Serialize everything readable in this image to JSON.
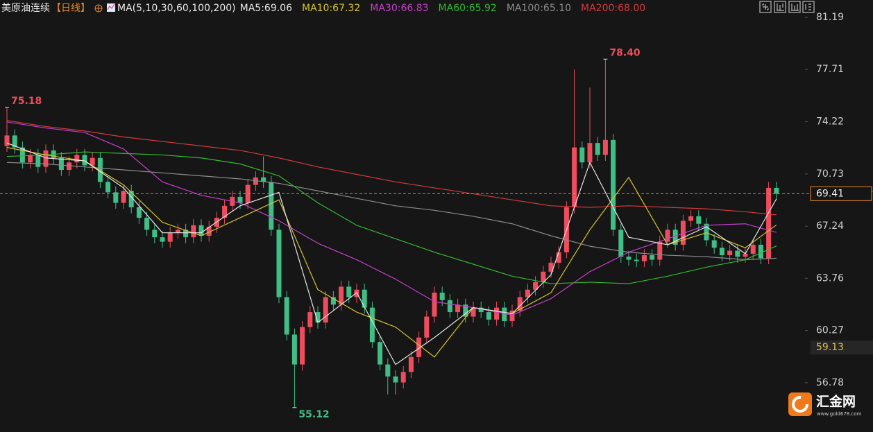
{
  "chart_data": {
    "type": "candlestick",
    "title": "美原油连续",
    "period": "【日线】",
    "ma_label": "MA(5,10,30,60,100,200)",
    "ylim": [
      53.49,
      82.35
    ],
    "yticks": [
      81.19,
      77.71,
      74.22,
      70.73,
      67.24,
      63.76,
      60.27,
      56.78
    ],
    "up_color": "#ef4d5d",
    "down_color": "#3fbf86",
    "last_price_color": "#e8892e",
    "price_marker": 59.13,
    "candles": {
      "open": [
        72.6,
        73.3,
        72.5,
        71.5,
        72.0,
        71.2,
        72.3,
        71.8,
        71.0,
        71.5,
        72.0,
        71.3,
        71.8,
        70.2,
        69.5,
        68.8,
        69.6,
        68.5,
        67.8,
        67.0,
        66.5,
        66.2,
        66.8,
        67.0,
        66.5,
        67.3,
        66.6,
        67.2,
        67.8,
        68.6,
        69.2,
        68.8,
        70.0,
        70.5,
        70.2,
        67.0,
        62.5,
        60.0,
        58.0,
        60.5,
        61.5,
        60.8,
        62.5,
        62.0,
        63.2,
        62.5,
        63.0,
        61.8,
        59.5,
        58.0,
        57.2,
        56.8,
        57.5,
        58.5,
        59.8,
        61.2,
        62.8,
        62.3,
        61.5,
        62.0,
        61.2,
        61.8,
        61.5,
        61.0,
        61.8,
        60.9,
        61.6,
        62.5,
        63.0,
        63.5,
        64.2,
        64.8,
        65.5,
        68.5,
        72.5,
        71.5,
        72.8,
        72.0,
        73.0,
        67.0,
        65.2,
        65.0,
        64.9,
        65.3,
        65.0,
        66.2,
        67.0,
        66.0,
        67.6,
        67.9,
        67.4,
        66.3,
        65.8,
        65.3,
        65.6,
        65.2,
        65.4,
        66.0,
        65.1,
        69.8
      ],
      "high": [
        75.18,
        73.7,
        72.9,
        72.4,
        72.4,
        72.7,
        72.7,
        72.2,
        71.9,
        72.4,
        72.4,
        72.2,
        72.2,
        70.6,
        69.9,
        70.0,
        70.0,
        68.9,
        68.2,
        67.4,
        66.9,
        67.2,
        67.4,
        67.4,
        67.7,
        67.7,
        67.6,
        68.2,
        69.0,
        69.6,
        69.6,
        70.4,
        70.9,
        71.9,
        70.6,
        67.4,
        62.9,
        60.4,
        60.9,
        61.9,
        61.9,
        62.9,
        62.9,
        63.6,
        63.6,
        63.4,
        63.4,
        62.2,
        59.9,
        58.4,
        57.6,
        57.9,
        58.9,
        60.2,
        61.6,
        63.2,
        63.2,
        62.7,
        62.4,
        62.4,
        62.2,
        62.2,
        61.9,
        62.2,
        62.2,
        62.0,
        62.9,
        63.4,
        63.9,
        64.6,
        65.2,
        65.9,
        68.9,
        77.7,
        72.9,
        76.5,
        73.2,
        78.4,
        73.4,
        67.4,
        65.6,
        65.4,
        65.7,
        65.7,
        66.6,
        67.4,
        67.4,
        68.0,
        68.3,
        68.3,
        67.8,
        66.7,
        66.2,
        66.0,
        66.0,
        65.8,
        66.4,
        66.4,
        70.2,
        70.2
      ],
      "low": [
        72.2,
        72.1,
        71.1,
        71.1,
        70.8,
        70.8,
        71.4,
        70.6,
        70.6,
        71.1,
        70.9,
        70.9,
        69.8,
        69.1,
        68.4,
        68.4,
        68.1,
        67.4,
        66.6,
        66.1,
        65.8,
        65.8,
        66.4,
        66.1,
        66.1,
        66.2,
        66.2,
        66.8,
        67.4,
        68.2,
        68.4,
        68.4,
        69.6,
        69.8,
        66.6,
        62.1,
        59.6,
        55.12,
        57.6,
        60.1,
        60.4,
        60.4,
        61.6,
        61.6,
        62.1,
        62.1,
        61.4,
        59.1,
        57.6,
        56.0,
        56.0,
        56.4,
        57.1,
        58.1,
        59.4,
        60.8,
        61.9,
        61.1,
        61.1,
        60.8,
        60.8,
        61.1,
        60.6,
        60.6,
        60.5,
        60.5,
        61.2,
        62.1,
        62.6,
        63.1,
        63.8,
        64.4,
        65.1,
        68.1,
        71.1,
        71.1,
        71.6,
        71.6,
        66.6,
        64.8,
        64.6,
        64.5,
        64.5,
        64.6,
        64.6,
        65.8,
        65.6,
        65.6,
        67.2,
        67.0,
        65.9,
        65.4,
        64.9,
        64.9,
        64.8,
        64.8,
        65.0,
        64.7,
        64.7,
        69.0
      ],
      "close": [
        73.3,
        72.5,
        71.5,
        72.0,
        71.2,
        72.3,
        71.8,
        71.0,
        71.5,
        72.0,
        71.3,
        71.8,
        70.2,
        69.5,
        68.8,
        69.6,
        68.5,
        67.8,
        67.0,
        66.5,
        66.2,
        66.8,
        67.0,
        66.5,
        67.3,
        66.6,
        67.2,
        67.8,
        68.6,
        69.2,
        68.8,
        70.0,
        70.5,
        70.2,
        67.0,
        62.5,
        60.0,
        58.0,
        60.5,
        61.5,
        60.8,
        62.5,
        62.0,
        63.2,
        62.5,
        63.0,
        61.8,
        59.5,
        58.0,
        57.2,
        56.8,
        57.5,
        58.5,
        59.8,
        61.2,
        62.8,
        62.3,
        61.5,
        62.0,
        61.2,
        61.8,
        61.5,
        61.0,
        61.8,
        60.9,
        61.6,
        62.5,
        63.0,
        63.5,
        64.2,
        64.8,
        65.5,
        68.5,
        72.5,
        71.5,
        72.8,
        72.0,
        73.0,
        67.0,
        65.2,
        65.0,
        64.9,
        65.3,
        65.0,
        66.2,
        67.0,
        66.0,
        67.6,
        67.9,
        67.4,
        66.3,
        65.8,
        65.3,
        65.6,
        65.2,
        65.4,
        66.0,
        65.1,
        69.8,
        69.41
      ],
      "high_labels": [
        "75.18",
        null,
        null,
        null,
        null,
        null,
        null,
        null,
        null,
        null,
        null,
        null,
        null,
        null,
        null,
        null,
        null,
        null,
        null,
        null,
        null,
        null,
        null,
        null,
        null,
        null,
        null,
        null,
        null,
        null,
        null,
        null,
        null,
        null,
        null,
        null,
        null,
        null,
        null,
        null,
        null,
        null,
        null,
        null,
        null,
        null,
        null,
        null,
        null,
        null,
        null,
        null,
        null,
        null,
        null,
        null,
        null,
        null,
        null,
        null,
        null,
        null,
        null,
        null,
        null,
        null,
        null,
        null,
        null,
        null,
        null,
        null,
        null,
        null,
        null,
        null,
        null,
        "78.40",
        null,
        null,
        null,
        null,
        null,
        null,
        null,
        null,
        null,
        null,
        null,
        null,
        null,
        null,
        null,
        null,
        null,
        null,
        null,
        null,
        null,
        null
      ],
      "low_labels": [
        null,
        null,
        null,
        null,
        null,
        null,
        null,
        null,
        null,
        null,
        null,
        null,
        null,
        null,
        null,
        null,
        null,
        null,
        null,
        null,
        null,
        null,
        null,
        null,
        null,
        null,
        null,
        null,
        null,
        null,
        null,
        null,
        null,
        null,
        null,
        null,
        null,
        "55.12",
        null,
        null,
        null,
        null,
        null,
        null,
        null,
        null,
        null,
        null,
        null,
        null,
        null,
        null,
        null,
        null,
        null,
        null,
        null,
        null,
        null,
        null,
        null,
        null,
        null,
        null,
        null,
        null,
        null,
        null,
        null,
        null,
        null,
        null,
        null,
        null,
        null,
        null,
        null,
        null,
        null,
        null,
        null,
        null,
        null,
        null,
        null,
        null,
        null,
        null,
        null,
        null,
        null,
        null,
        null,
        null,
        null,
        null,
        null,
        null,
        null,
        null
      ]
    },
    "ma_series": [
      {
        "name": "MA5",
        "label": "MA5:69.06",
        "color": "#e6e6e6",
        "x": [
          0,
          5,
          10,
          15,
          20,
          25,
          30,
          35,
          40,
          45,
          50,
          55,
          60,
          65,
          70,
          75,
          80,
          85,
          90,
          95,
          99
        ],
        "values": [
          72.8,
          71.8,
          71.6,
          69.8,
          66.8,
          66.8,
          68.6,
          69.5,
          60.8,
          62.8,
          58.0,
          59.8,
          61.8,
          61.4,
          64.0,
          71.5,
          66.5,
          66.0,
          67.2,
          65.4,
          69.06
        ]
      },
      {
        "name": "MA10",
        "label": "MA10:67.32",
        "color": "#d8c42e",
        "x": [
          0,
          5,
          10,
          15,
          20,
          25,
          30,
          35,
          40,
          45,
          50,
          55,
          60,
          65,
          70,
          75,
          80,
          85,
          90,
          95,
          99
        ],
        "values": [
          72.5,
          72.0,
          71.6,
          70.0,
          67.5,
          66.6,
          67.8,
          69.0,
          63.0,
          61.5,
          60.5,
          58.5,
          61.8,
          61.4,
          62.8,
          67.0,
          70.5,
          66.0,
          66.8,
          65.8,
          67.32
        ]
      },
      {
        "name": "MA30",
        "label": "MA30:66.83",
        "color": "#c53fcb",
        "x": [
          0,
          5,
          10,
          15,
          20,
          25,
          30,
          35,
          40,
          45,
          50,
          55,
          60,
          65,
          70,
          75,
          80,
          85,
          90,
          95,
          99
        ],
        "values": [
          74.2,
          73.8,
          73.5,
          72.4,
          70.2,
          69.3,
          68.8,
          67.6,
          66.1,
          65.0,
          63.7,
          62.2,
          61.8,
          61.3,
          62.4,
          64.2,
          65.5,
          66.4,
          67.3,
          67.4,
          66.83
        ]
      },
      {
        "name": "MA60",
        "label": "MA60:65.92",
        "color": "#33b933",
        "x": [
          0,
          5,
          10,
          15,
          20,
          25,
          30,
          35,
          40,
          45,
          50,
          55,
          60,
          65,
          70,
          75,
          80,
          85,
          90,
          95,
          99
        ],
        "values": [
          71.9,
          72.0,
          72.2,
          72.1,
          72.0,
          71.8,
          71.4,
          70.6,
          68.8,
          67.3,
          66.4,
          65.5,
          64.7,
          63.9,
          63.4,
          63.5,
          63.4,
          63.9,
          64.5,
          65.0,
          65.92
        ]
      },
      {
        "name": "MA100",
        "label": "MA100:65.10",
        "color": "#8c8c8c",
        "x": [
          0,
          5,
          10,
          15,
          20,
          25,
          30,
          35,
          40,
          45,
          50,
          55,
          60,
          65,
          70,
          75,
          80,
          85,
          90,
          95,
          99
        ],
        "values": [
          71.5,
          71.4,
          71.2,
          71.0,
          70.8,
          70.6,
          70.4,
          70.1,
          69.6,
          69.1,
          68.6,
          68.3,
          67.9,
          67.4,
          66.6,
          65.9,
          65.5,
          65.3,
          65.2,
          65.0,
          65.1
        ]
      },
      {
        "name": "MA200",
        "label": "MA200:68.00",
        "color": "#d23b3b",
        "x": [
          0,
          5,
          10,
          15,
          20,
          25,
          30,
          35,
          40,
          45,
          50,
          55,
          60,
          65,
          70,
          75,
          80,
          85,
          90,
          95,
          99
        ],
        "values": [
          74.3,
          73.9,
          73.6,
          73.2,
          72.9,
          72.6,
          72.3,
          71.8,
          71.2,
          70.7,
          70.2,
          69.8,
          69.4,
          69.0,
          68.6,
          68.5,
          68.6,
          68.5,
          68.4,
          68.2,
          68.0
        ]
      }
    ]
  },
  "watermark": {
    "name": "汇金网",
    "url": "www.gold678.com"
  }
}
